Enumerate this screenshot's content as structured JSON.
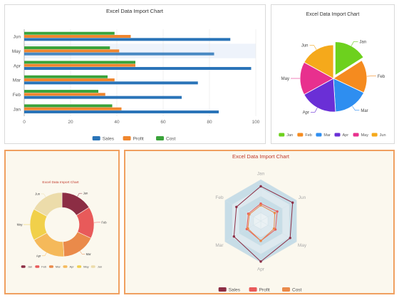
{
  "chart_data": [
    {
      "type": "bar",
      "orientation": "horizontal",
      "title": "Excel Data Import Chart",
      "categories": [
        "Jan",
        "Feb",
        "Mar",
        "Apr",
        "May",
        "Jun"
      ],
      "series": [
        {
          "name": "Sales",
          "values": [
            84,
            68,
            75,
            98,
            82,
            89
          ]
        },
        {
          "name": "Profit",
          "values": [
            42,
            35,
            39,
            48,
            41,
            46
          ]
        },
        {
          "name": "Cost",
          "values": [
            38,
            32,
            36,
            48,
            37,
            39
          ]
        }
      ],
      "xlim": [
        0,
        100
      ],
      "xticks": [
        0,
        20,
        40,
        60,
        80,
        100
      ],
      "highlight_category": "May",
      "legend_position": "bottom",
      "colors": {
        "Sales": "#2a74b8",
        "Profit": "#f0862e",
        "Cost": "#3aa33a"
      }
    },
    {
      "type": "pie",
      "title": "Excel Data Import Chart",
      "labels": [
        "Jan",
        "Feb",
        "Mar",
        "Apr",
        "May",
        "Jun"
      ],
      "values": [
        16,
        16,
        17,
        18,
        16,
        17
      ],
      "colors": [
        "#6dd11e",
        "#f58b1f",
        "#2e8ef0",
        "#6a2fd6",
        "#e8308e",
        "#f5a91b"
      ],
      "highlight": "Jan",
      "legend_position": "bottom"
    },
    {
      "type": "pie",
      "variant": "donut",
      "title": "Excel Data Import Chart",
      "labels": [
        "Jan",
        "Feb",
        "Mar",
        "Apr",
        "May",
        "Jun"
      ],
      "values": [
        16,
        16,
        17,
        18,
        16,
        17
      ],
      "colors": [
        "#8c2d44",
        "#e85a5a",
        "#ea8a4a",
        "#f5b95a",
        "#f1d04a",
        "#ecdcaa"
      ],
      "legend_position": "bottom"
    },
    {
      "type": "radar",
      "title": "Excel Data Import Chart",
      "indicators": [
        "Jan",
        "Jun",
        "May",
        "Apr",
        "Mar",
        "Feb"
      ],
      "max": 100,
      "series": [
        {
          "name": "Sales",
          "values": [
            84,
            89,
            82,
            98,
            75,
            68
          ]
        },
        {
          "name": "Profit",
          "values": [
            42,
            46,
            41,
            48,
            39,
            35
          ]
        },
        {
          "name": "Cost",
          "values": [
            38,
            39,
            37,
            48,
            36,
            32
          ]
        }
      ],
      "colors": {
        "Sales": "#8c2d44",
        "Profit": "#e85a5a",
        "Cost": "#ea8a4a"
      },
      "legend_position": "bottom"
    }
  ]
}
